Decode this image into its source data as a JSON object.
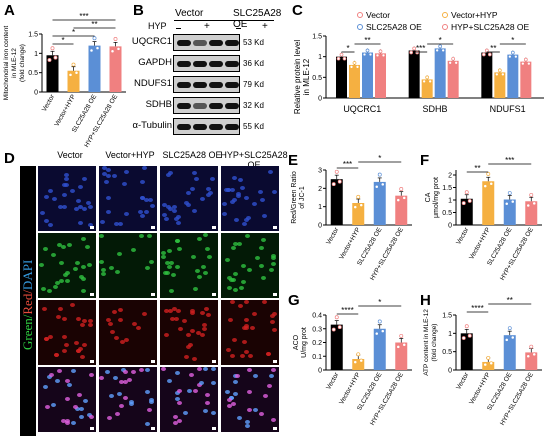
{
  "panels": {
    "A": {
      "label": "A",
      "ylabel_line1": "Mitochondrial iron content",
      "ylabel_line2": "in MLE-12",
      "ylabel_line3": "(fold change)",
      "sig": [
        "*",
        "*",
        "***",
        "**"
      ]
    },
    "B": {
      "label": "B",
      "cond_vector": "Vector",
      "cond_oe": "SLC25A28 OE",
      "hyp": "HYP",
      "signs": [
        "−",
        "+",
        "−",
        "+"
      ],
      "proteins": [
        "UQCRC1",
        "GAPDH",
        "NDUFS1",
        "SDHB",
        "α-Tubulin"
      ],
      "sizes": [
        "53 Kd",
        "36 Kd",
        "79 Kd",
        "32 Kd",
        "55 Kd"
      ]
    },
    "C": {
      "label": "C",
      "ylabel_line1": "Relative protein level",
      "ylabel_line2": "in MLE-12",
      "legend": [
        "Vector",
        "Vector+HYP",
        "SLC25A28 OE",
        "HYP+SLC25A28 OE"
      ],
      "groups": [
        "UQCRC1",
        "SDHB",
        "NDUFS1"
      ],
      "sig": [
        "*",
        "**",
        "***",
        "*",
        "**",
        "*"
      ]
    },
    "D": {
      "label": "D",
      "cols": [
        "Vector",
        "Vector+HYP",
        "SLC25A28 OE",
        "HYP+SLC25A28 OE"
      ],
      "vlabel_green": "Green/",
      "vlabel_red": "Red/",
      "vlabel_blue": "DAPI"
    },
    "E": {
      "label": "E",
      "ylabel_line1": "Red/Green Ratio",
      "ylabel_line2": "of JC-1",
      "sig": [
        "***",
        "*"
      ]
    },
    "F": {
      "label": "F",
      "ylabel_line1": "CA",
      "ylabel_line2": "μmol/mg prot",
      "sig": [
        "**",
        "***"
      ]
    },
    "G": {
      "label": "G",
      "ylabel_line1": "ACO",
      "ylabel_line2": "U/mg prot",
      "sig": [
        "****",
        "*"
      ]
    },
    "H": {
      "label": "H",
      "ylabel_line1": "ATP content in MLE-12",
      "ylabel_line2": "(fold change)",
      "sig": [
        "****",
        "**"
      ]
    }
  },
  "categories": [
    "Vector",
    "Vector+HYP",
    "SLC25A28 OE",
    "HYP+SLC25A28 OE"
  ],
  "colors": {
    "vector": "#000000",
    "hyp": "#f5b041",
    "oe": "#5b8fd6",
    "hypoe": "#f08080"
  },
  "chart_data": [
    {
      "type": "bar",
      "id": "A",
      "categories": [
        "Vector",
        "Vector+HYP",
        "SLC25A28 OE",
        "HYP+SLC25A28 OE"
      ],
      "values": [
        0.95,
        0.55,
        1.2,
        1.18
      ],
      "yticks": [
        0.0,
        0.5,
        1.0,
        1.5
      ],
      "ylim": [
        0,
        1.5
      ]
    },
    {
      "type": "bar",
      "id": "C",
      "categories": [
        "UQCRC1",
        "SDHB",
        "NDUFS1"
      ],
      "series": [
        {
          "name": "Vector",
          "values": [
            1.0,
            1.15,
            1.1
          ]
        },
        {
          "name": "Vector+HYP",
          "values": [
            0.8,
            0.45,
            0.62
          ]
        },
        {
          "name": "SLC25A28 OE",
          "values": [
            1.1,
            1.2,
            1.05
          ]
        },
        {
          "name": "HYP+SLC25A28 OE",
          "values": [
            1.08,
            0.9,
            0.88
          ]
        }
      ],
      "yticks": [
        0.0,
        0.5,
        1.0,
        1.5
      ],
      "ylim": [
        0,
        1.5
      ]
    },
    {
      "type": "bar",
      "id": "E",
      "categories": [
        "Vector",
        "Vector+HYP",
        "SLC25A28 OE",
        "HYP+SLC25A28 OE"
      ],
      "values": [
        2.5,
        1.2,
        2.35,
        1.6
      ],
      "yticks": [
        0,
        1,
        2,
        3
      ],
      "ylim": [
        0,
        3
      ]
    },
    {
      "type": "bar",
      "id": "F",
      "categories": [
        "Vector",
        "Vector+HYP",
        "SLC25A28 OE",
        "HYP+SLC25A28 OE"
      ],
      "values": [
        1.05,
        1.75,
        1.02,
        0.95
      ],
      "yticks": [
        0.0,
        0.5,
        1.0,
        1.5,
        2.0
      ],
      "ylim": [
        0,
        2.2
      ]
    },
    {
      "type": "bar",
      "id": "G",
      "categories": [
        "Vector",
        "Vector+HYP",
        "SLC25A28 OE",
        "HYP+SLC25A28 OE"
      ],
      "values": [
        0.33,
        0.08,
        0.3,
        0.2
      ],
      "yticks": [
        0.0,
        0.1,
        0.2,
        0.3,
        0.4
      ],
      "ylim": [
        0,
        0.4
      ]
    },
    {
      "type": "bar",
      "id": "H",
      "categories": [
        "Vector",
        "Vector+HYP",
        "SLC25A28 OE",
        "HYP+SLC25A28 OE"
      ],
      "values": [
        1.0,
        0.22,
        0.95,
        0.48
      ],
      "yticks": [
        0.0,
        0.5,
        1.0,
        1.5
      ],
      "ylim": [
        0,
        1.5
      ]
    }
  ]
}
